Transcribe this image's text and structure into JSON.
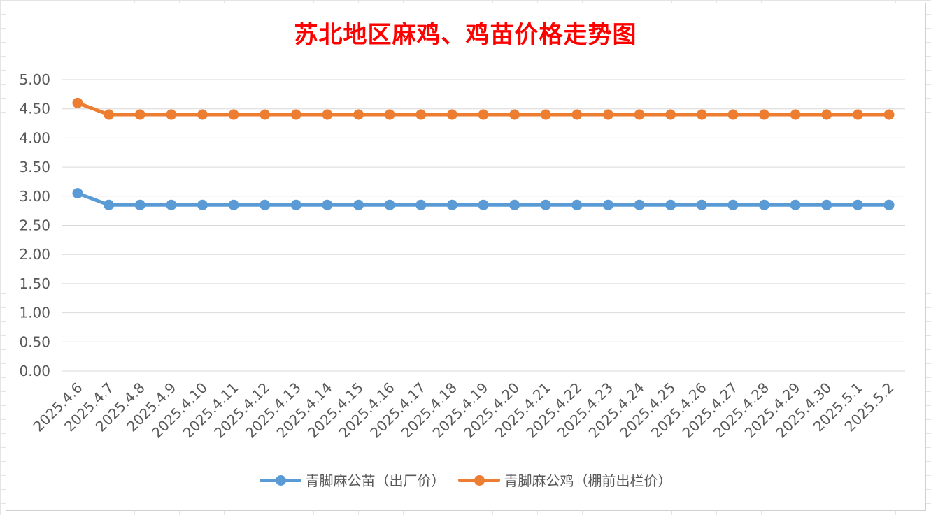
{
  "chart_data": {
    "type": "line",
    "title": "苏北地区麻鸡、鸡苗价格走势图",
    "xlabel": "",
    "ylabel": "",
    "ylim": [
      0,
      5
    ],
    "ytick_labels": [
      "0.00",
      "0.50",
      "1.00",
      "1.50",
      "2.00",
      "2.50",
      "3.00",
      "3.50",
      "4.00",
      "4.50",
      "5.00"
    ],
    "grid": true,
    "legend_position": "bottom",
    "categories": [
      "2025.4.6",
      "2025.4.7",
      "2025.4.8",
      "2025.4.9",
      "2025.4.10",
      "2025.4.11",
      "2025.4.12",
      "2025.4.13",
      "2025.4.14",
      "2025.4.15",
      "2025.4.16",
      "2025.4.17",
      "2025.4.18",
      "2025.4.19",
      "2025.4.20",
      "2025.4.21",
      "2025.4.22",
      "2025.4.23",
      "2025.4.24",
      "2025.4.25",
      "2025.4.26",
      "2025.4.27",
      "2025.4.28",
      "2025.4.29",
      "2025.4.30",
      "2025.5.1",
      "2025.5.2"
    ],
    "series": [
      {
        "name": "青脚麻公苗（出厂价）",
        "color": "#5b9bd5",
        "values": [
          3.05,
          2.85,
          2.85,
          2.85,
          2.85,
          2.85,
          2.85,
          2.85,
          2.85,
          2.85,
          2.85,
          2.85,
          2.85,
          2.85,
          2.85,
          2.85,
          2.85,
          2.85,
          2.85,
          2.85,
          2.85,
          2.85,
          2.85,
          2.85,
          2.85,
          2.85,
          2.85
        ]
      },
      {
        "name": "青脚麻公鸡（棚前出栏价）",
        "color": "#ed7d31",
        "values": [
          4.6,
          4.4,
          4.4,
          4.4,
          4.4,
          4.4,
          4.4,
          4.4,
          4.4,
          4.4,
          4.4,
          4.4,
          4.4,
          4.4,
          4.4,
          4.4,
          4.4,
          4.4,
          4.4,
          4.4,
          4.4,
          4.4,
          4.4,
          4.4,
          4.4,
          4.4,
          4.4
        ]
      }
    ],
    "colors": {
      "title": "#ff0000",
      "gridline": "#d9d9d9",
      "axis_text": "#595959"
    }
  }
}
